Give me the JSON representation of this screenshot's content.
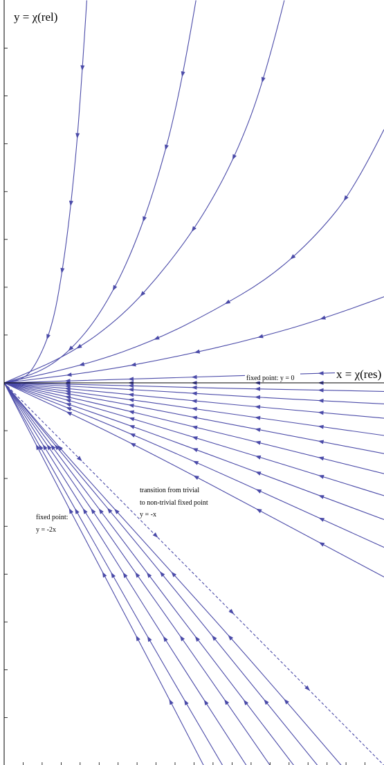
{
  "chart_data": {
    "type": "line",
    "title": "",
    "xlabel": "x = χ(res)",
    "ylabel": "y = χ(rel)",
    "annotations": {
      "fixed_point_y0": "fixed point: y = 0",
      "transition_line1": "transition from trivial",
      "transition_line2": "to non-trivial fixed point",
      "transition_line3": "y = -x",
      "fixed_point_2x_line1": "fixed point:",
      "fixed_point_2x_line2": "y = -2x"
    },
    "xlim": [
      0,
      4
    ],
    "ylim": [
      -4,
      4
    ],
    "grid": false,
    "legend": "none",
    "colors": {
      "flow": "#4a4aa8",
      "axis": "#000000"
    },
    "series": [
      {
        "kind": "flow",
        "points": [
          [
            0.87,
            4.0
          ],
          [
            0.8,
            2.9
          ],
          [
            0.72,
            2.0
          ],
          [
            0.62,
            1.2
          ],
          [
            0.5,
            0.55
          ],
          [
            0.3,
            0.12
          ],
          [
            0.15,
            0.02
          ],
          [
            0.0,
            0.0
          ]
        ]
      },
      {
        "kind": "flow",
        "points": [
          [
            2.02,
            4.0
          ],
          [
            1.85,
            3.0
          ],
          [
            1.58,
            2.0
          ],
          [
            1.3,
            1.25
          ],
          [
            1.0,
            0.7
          ],
          [
            0.7,
            0.34
          ],
          [
            0.4,
            0.12
          ],
          [
            0.0,
            0.0
          ]
        ]
      },
      {
        "kind": "flow",
        "points": [
          [
            2.95,
            4.0
          ],
          [
            2.75,
            3.2
          ],
          [
            2.45,
            2.4
          ],
          [
            2.1,
            1.75
          ],
          [
            1.7,
            1.2
          ],
          [
            1.25,
            0.7
          ],
          [
            0.7,
            0.3
          ],
          [
            0.0,
            0.0
          ]
        ]
      },
      {
        "kind": "flow",
        "points": [
          [
            4.0,
            2.65
          ],
          [
            3.7,
            2.05
          ],
          [
            3.3,
            1.55
          ],
          [
            2.8,
            1.1
          ],
          [
            2.2,
            0.75
          ],
          [
            1.6,
            0.45
          ],
          [
            0.9,
            0.2
          ],
          [
            0.0,
            0.0
          ]
        ]
      },
      {
        "kind": "flow",
        "points": [
          [
            4.0,
            0.9
          ],
          [
            3.4,
            0.68
          ],
          [
            2.6,
            0.45
          ],
          [
            1.8,
            0.27
          ],
          [
            1.0,
            0.12
          ],
          [
            0.0,
            0.0
          ]
        ]
      },
      {
        "kind": "flow",
        "points": [
          [
            4.0,
            0.12
          ],
          [
            3.0,
            0.09
          ],
          [
            2.0,
            0.06
          ],
          [
            1.0,
            0.03
          ],
          [
            0.0,
            0.0
          ]
        ]
      },
      {
        "kind": "flow",
        "points": [
          [
            4.0,
            0.0
          ],
          [
            0.0,
            0.0
          ]
        ]
      },
      {
        "kind": "flow",
        "points": [
          [
            4.0,
            -0.09
          ],
          [
            3.0,
            -0.07
          ],
          [
            2.0,
            -0.05
          ],
          [
            1.0,
            -0.02
          ],
          [
            0.0,
            0.0
          ]
        ]
      },
      {
        "kind": "flow",
        "points": [
          [
            4.0,
            -0.22
          ],
          [
            3.0,
            -0.17
          ],
          [
            2.0,
            -0.11
          ],
          [
            1.0,
            -0.05
          ],
          [
            0.0,
            0.0
          ]
        ]
      },
      {
        "kind": "flow",
        "points": [
          [
            4.0,
            -0.37
          ],
          [
            3.0,
            -0.28
          ],
          [
            2.0,
            -0.19
          ],
          [
            1.0,
            -0.09
          ],
          [
            0.0,
            0.0
          ]
        ]
      },
      {
        "kind": "flow",
        "points": [
          [
            4.0,
            -0.55
          ],
          [
            3.0,
            -0.41
          ],
          [
            2.0,
            -0.27
          ],
          [
            1.0,
            -0.13
          ],
          [
            0.0,
            0.0
          ]
        ]
      },
      {
        "kind": "flow",
        "points": [
          [
            4.0,
            -0.74
          ],
          [
            3.0,
            -0.55
          ],
          [
            2.0,
            -0.36
          ],
          [
            1.0,
            -0.17
          ],
          [
            0.0,
            0.0
          ]
        ]
      },
      {
        "kind": "flow",
        "points": [
          [
            4.0,
            -0.95
          ],
          [
            3.0,
            -0.7
          ],
          [
            2.0,
            -0.46
          ],
          [
            1.0,
            -0.22
          ],
          [
            0.0,
            0.0
          ]
        ]
      },
      {
        "kind": "flow",
        "points": [
          [
            4.0,
            -1.18
          ],
          [
            3.0,
            -0.87
          ],
          [
            2.0,
            -0.57
          ],
          [
            1.0,
            -0.27
          ],
          [
            0.0,
            0.0
          ]
        ]
      },
      {
        "kind": "flow",
        "points": [
          [
            4.0,
            -1.43
          ],
          [
            3.0,
            -1.06
          ],
          [
            2.0,
            -0.69
          ],
          [
            1.0,
            -0.33
          ],
          [
            0.0,
            0.0
          ]
        ]
      },
      {
        "kind": "flow",
        "points": [
          [
            4.0,
            -1.72
          ],
          [
            3.0,
            -1.27
          ],
          [
            2.0,
            -0.82
          ],
          [
            1.0,
            -0.39
          ],
          [
            0.0,
            0.0
          ]
        ]
      },
      {
        "kind": "flow",
        "points": [
          [
            4.0,
            -2.03
          ],
          [
            3.0,
            -1.5
          ],
          [
            2.0,
            -0.97
          ],
          [
            1.0,
            -0.46
          ],
          [
            0.0,
            0.0
          ]
        ]
      },
      {
        "kind": "dashed",
        "points": [
          [
            0.0,
            0.0
          ],
          [
            4.0,
            -4.0
          ]
        ]
      },
      {
        "kind": "flow",
        "points": [
          [
            3.55,
            -4.0
          ],
          [
            2.6,
            -2.9
          ],
          [
            1.6,
            -1.8
          ],
          [
            0.6,
            -0.7
          ],
          [
            0.0,
            0.0
          ]
        ]
      },
      {
        "kind": "flow",
        "points": [
          [
            3.3,
            -4.0
          ],
          [
            2.4,
            -2.9
          ],
          [
            1.5,
            -1.8
          ],
          [
            0.6,
            -0.73
          ],
          [
            0.0,
            0.0
          ]
        ]
      },
      {
        "kind": "flow",
        "points": [
          [
            3.05,
            -4.0
          ],
          [
            2.2,
            -2.9
          ],
          [
            1.4,
            -1.85
          ],
          [
            0.6,
            -0.79
          ],
          [
            0.0,
            0.0
          ]
        ]
      },
      {
        "kind": "flow",
        "points": [
          [
            2.8,
            -4.0
          ],
          [
            2.0,
            -2.85
          ],
          [
            1.25,
            -1.8
          ],
          [
            0.6,
            -0.86
          ],
          [
            0.0,
            0.0
          ]
        ]
      },
      {
        "kind": "flow",
        "points": [
          [
            2.55,
            -4.0
          ],
          [
            1.8,
            -2.85
          ],
          [
            1.15,
            -1.82
          ],
          [
            0.6,
            -0.95
          ],
          [
            0.0,
            0.0
          ]
        ]
      },
      {
        "kind": "flow",
        "points": [
          [
            2.3,
            -4.0
          ],
          [
            1.65,
            -2.9
          ],
          [
            1.05,
            -1.85
          ],
          [
            0.55,
            -0.97
          ],
          [
            0.0,
            0.0
          ]
        ]
      },
      {
        "kind": "flow",
        "points": [
          [
            2.1,
            -4.0
          ],
          [
            1.5,
            -2.85
          ],
          [
            0.95,
            -1.82
          ],
          [
            0.5,
            -0.96
          ],
          [
            0.0,
            0.0
          ]
        ]
      }
    ]
  }
}
